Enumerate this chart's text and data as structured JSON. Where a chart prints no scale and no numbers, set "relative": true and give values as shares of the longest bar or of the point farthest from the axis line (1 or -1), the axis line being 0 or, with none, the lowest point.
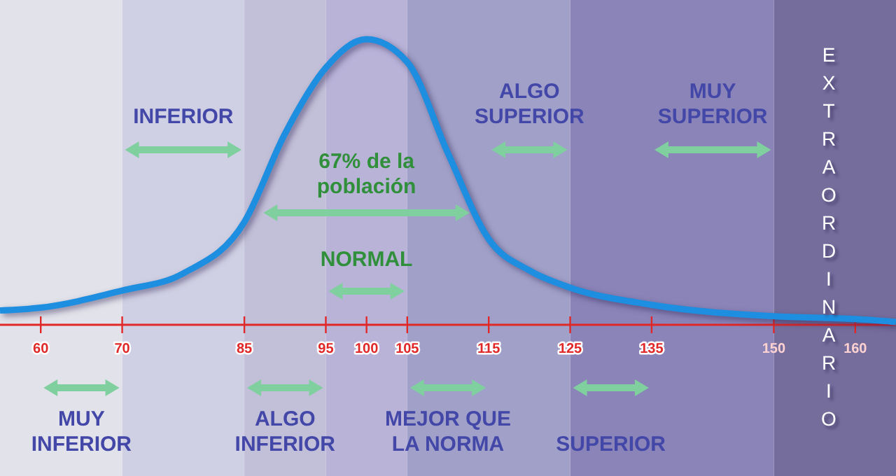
{
  "chart_data": {
    "type": "line",
    "relative": true,
    "color": "#1e8fe0",
    "x": [
      55,
      60,
      70,
      77.5,
      85,
      90,
      95,
      100,
      105,
      110,
      115,
      120,
      125,
      135,
      150,
      160,
      165
    ],
    "values": [
      0.05,
      0.06,
      0.12,
      0.18,
      0.36,
      0.67,
      0.9,
      1,
      0.92,
      0.6,
      0.3,
      0.19,
      0.13,
      0.07,
      0.03,
      0.02,
      0.01
    ],
    "xlim": [
      55,
      165
    ],
    "xticks": [
      60,
      70,
      85,
      95,
      100,
      105,
      115,
      125,
      135,
      150,
      160
    ],
    "bands": [
      {
        "axis": "x",
        "from": 55,
        "to": 70,
        "color": "#e2e2ea"
      },
      {
        "axis": "x",
        "from": 70,
        "to": 85,
        "color": "#d0d0e4"
      },
      {
        "axis": "x",
        "from": 85,
        "to": 95,
        "color": "#c2bfd8"
      },
      {
        "axis": "x",
        "from": 95,
        "to": 105,
        "color": "#b9b3d8"
      },
      {
        "axis": "x",
        "from": 105,
        "to": 125,
        "color": "#a0a0c8"
      },
      {
        "axis": "x",
        "from": 125,
        "to": 150,
        "color": "#8b84b8"
      },
      {
        "axis": "x",
        "from": 150,
        "to": 165,
        "color": "#756d9c",
        "label": "EXTRAORDINARIO"
      }
    ],
    "annotations": [
      "MUY INFERIOR",
      "INFERIOR",
      "ALGO INFERIOR",
      "NORMAL",
      "MEJOR QUE LA NORMA",
      "ALGO SUPERIOR",
      "SUPERIOR",
      "MUY SUPERIOR",
      "67% de la población"
    ]
  }
}
